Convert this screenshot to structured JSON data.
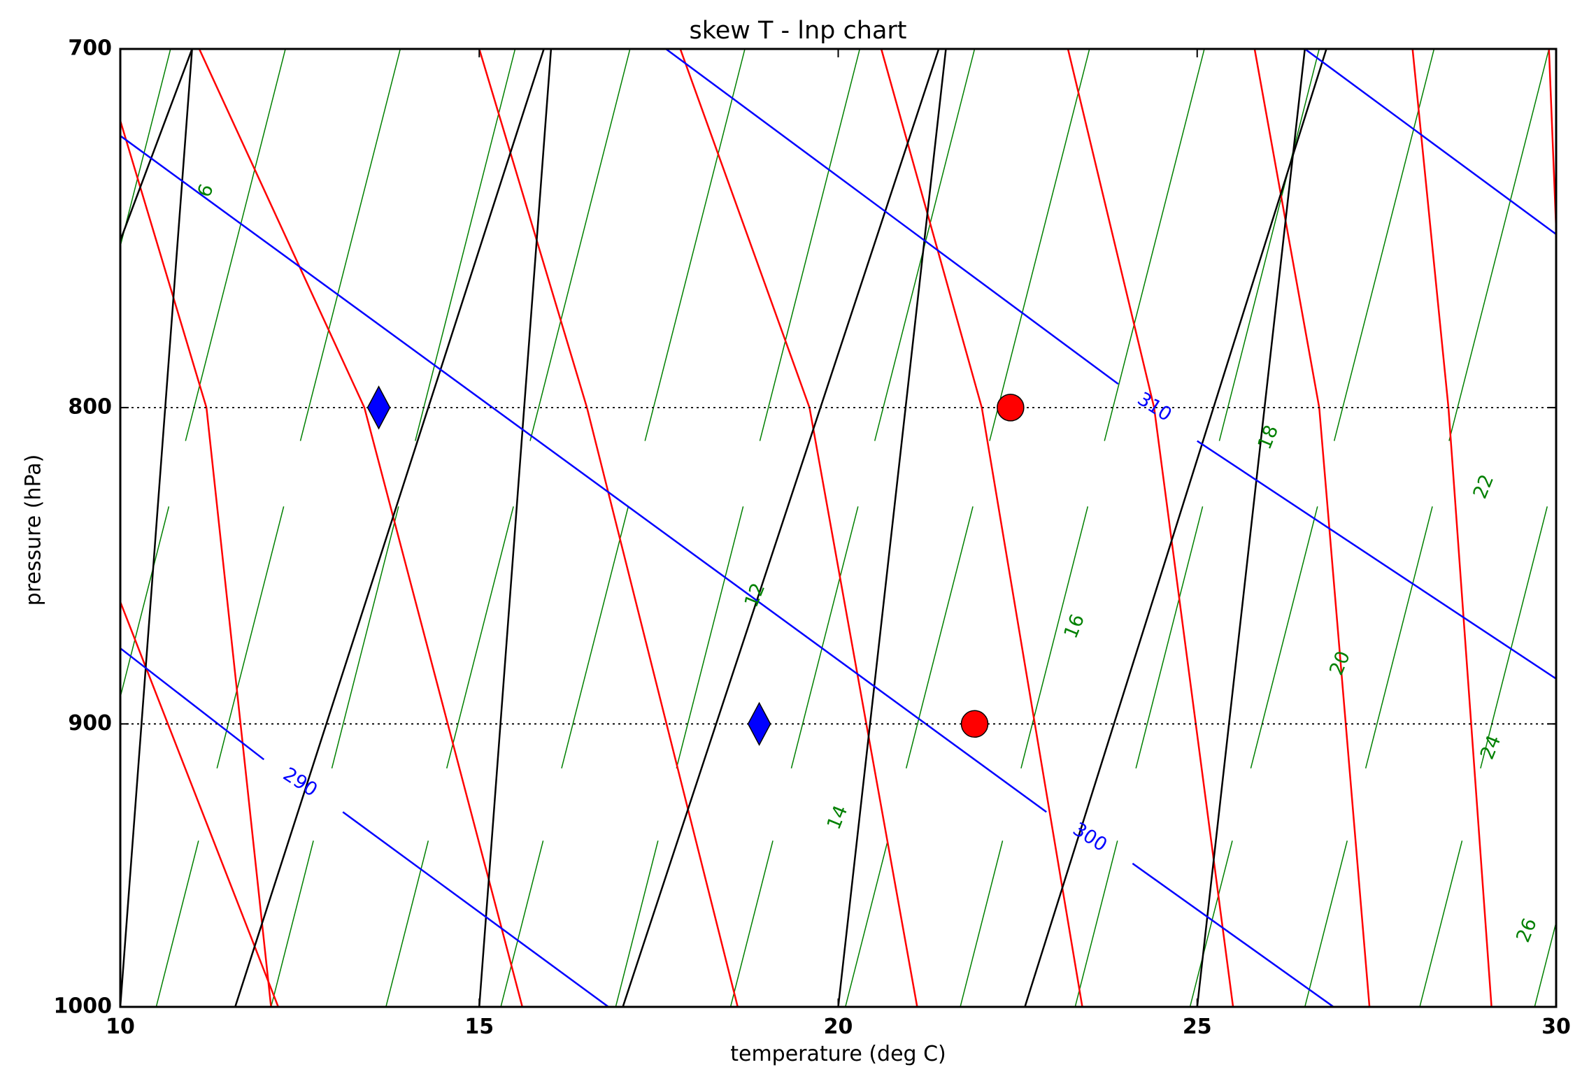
{
  "chart_data": {
    "type": "line",
    "title": "skew T - lnp chart",
    "xlabel": "temperature (deg C)",
    "ylabel": "pressure (hPa)",
    "xlim": [
      10,
      30
    ],
    "ylim": [
      1000,
      700
    ],
    "y_scale": "log",
    "x_ticks": [
      "10",
      "15",
      "20",
      "25",
      "30"
    ],
    "y_ticks": [
      "700",
      "800",
      "900",
      "1000"
    ],
    "horizontal_reference_lines": [
      800,
      900
    ],
    "colors": {
      "isotherms": "#000000",
      "dry_adiabats": "#0000ff",
      "mixing_ratio_lines": "#008000",
      "moist_adiabats": "#ff0000",
      "temperature_markers": "#ff0000",
      "dewpoint_markers": "#0000ff"
    },
    "series": [
      {
        "name": "isotherms",
        "style": "black solid",
        "lines": [
          {
            "x_at_1000": 10,
            "x_at_700": 11.0
          },
          {
            "x_at_1000": 15,
            "x_at_700": 16.0
          },
          {
            "x_at_1000": 20,
            "x_at_700": 21.5
          },
          {
            "x_at_1000": 25,
            "x_at_700": 26.5
          },
          {
            "x_at_1000": 8.2,
            "x_at_700": 10.0
          },
          {
            "x_at_1000": 5.0,
            "x_at_700": 10.0
          },
          {
            "x_at_1000": 3.0,
            "x_at_700": 10.0
          },
          {
            "x_at_1000": 30.0,
            "x_at_700": 30.5
          },
          {
            "x_at_1000": 30.0,
            "x_at_700": 35.0
          }
        ]
      },
      {
        "name": "dry_adiabats",
        "style": "blue solid",
        "lines": [
          {
            "points": [
              [
                10,
                875
              ],
              [
                12,
                912
              ],
              [
                13.1,
                930
              ],
              [
                16.8,
                1000
              ]
            ],
            "label": "290"
          },
          {
            "points": [
              [
                10,
                723
              ],
              [
                22.9,
                930
              ],
              [
                24.1,
                948
              ],
              [
                26.9,
                1000
              ]
            ],
            "label": "300"
          },
          {
            "points": [
              [
                17.6,
                700
              ],
              [
                23.9,
                793
              ],
              [
                25,
                810
              ],
              [
                30,
                885
              ]
            ],
            "label": "310"
          },
          {
            "points": [
              [
                26.5,
                700
              ],
              [
                30,
                750
              ]
            ]
          }
        ],
        "labels": [
          {
            "text": "290",
            "x": 12.5,
            "y": 920
          },
          {
            "text": "300",
            "x": 23.5,
            "y": 939
          },
          {
            "text": "310",
            "x": 24.4,
            "y": 800
          }
        ]
      },
      {
        "name": "mixing_ratio_lines",
        "style": "green thin solid",
        "labels": [
          {
            "text": "6",
            "x": 11.2,
            "y": 738
          },
          {
            "text": "12",
            "x": 18.85,
            "y": 858
          },
          {
            "text": "14",
            "x": 20.0,
            "y": 932
          },
          {
            "text": "16",
            "x": 23.3,
            "y": 868
          },
          {
            "text": "18",
            "x": 26.0,
            "y": 809
          },
          {
            "text": "20",
            "x": 27.0,
            "y": 880
          },
          {
            "text": "22",
            "x": 29.0,
            "y": 824
          },
          {
            "text": "24",
            "x": 29.1,
            "y": 908
          },
          {
            "text": "26",
            "x": 29.6,
            "y": 972
          }
        ]
      },
      {
        "name": "moist_adiabats",
        "style": "red solid"
      },
      {
        "name": "temperature",
        "marker": "circle",
        "points": [
          {
            "x": 22.4,
            "y": 800
          },
          {
            "x": 21.9,
            "y": 900
          }
        ]
      },
      {
        "name": "dewpoint",
        "marker": "diamond",
        "points": [
          {
            "x": 13.6,
            "y": 800
          },
          {
            "x": 18.9,
            "y": 900
          }
        ]
      }
    ]
  }
}
